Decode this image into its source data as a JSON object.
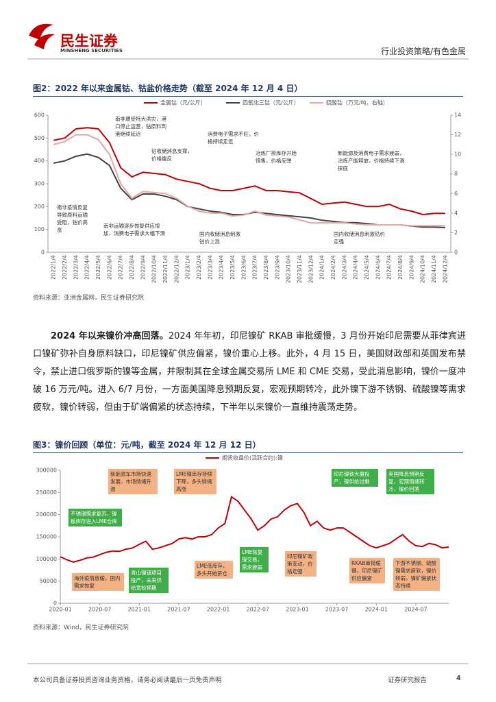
{
  "header": {
    "logo_cn": "民生证券",
    "logo_en": "MINSHENG SECURITIES",
    "section": "行业投资策略/有色金属"
  },
  "figure2": {
    "title": "图2：2022 年以来金属钴、钴盐价格走势（截至 2024 年 12 月 4 日）",
    "source": "资料来源：亚洲金属网，民生证券研究院"
  },
  "paragraph": {
    "lead": "2024 年以来镍价冲高回落。",
    "body": "2024 年年初，印尼镍矿 RKAB 审批缓慢，3 月份开始印尼需要从菲律宾进口镍矿弥补自身原料缺口，印尼镍矿供应偏紧，镍价重心上移。此外，4 月 15 日，美国财政部和英国发布禁令，禁止进口俄罗斯的镍等金属，并限制其在全球金属交易所 LME 和 CME 交易，受此消息影响，镍价一度冲破 16 万元/吨。进入 6/7 月份，一方面美国降息预期反复，宏观预期转冷，此外镍下游不锈钢、硫酸镍等需求疲软，镍价转弱，但由于矿端偏紧的状态持续，下半年以来镍价一直维持震荡走势。"
  },
  "figure3": {
    "title": "图3：镍价回顾（单位：元/吨，截至 2024 年 12 月 12 日）",
    "source": "资料来源：Wind，民生证券研究院"
  },
  "footer": {
    "disclaimer": "本公司具备证券投资咨询业务资格，请务必阅读最后一页免责声明",
    "report_type": "证券研究报告",
    "page": "4"
  },
  "chart_data": [
    {
      "type": "line",
      "categories": [
        "2022/1/4",
        "2022/2/4",
        "2022/3/4",
        "2022/4/4",
        "2022/5/4",
        "2022/6/4",
        "2022/7/4",
        "2022/8/4",
        "2022/9/4",
        "2022/10/4",
        "2022/11/4",
        "2022/12/4",
        "2023/1/4",
        "2023/2/4",
        "2023/3/4",
        "2023/4/4",
        "2023/5/4",
        "2023/6/4",
        "2023/7/4",
        "2023/8/4",
        "2023/9/4",
        "2023/10/4",
        "2023/11/4",
        "2023/12/4",
        "2024/1/4",
        "2024/2/4",
        "2024/3/4",
        "2024/4/4",
        "2024/5/4",
        "2024/6/4",
        "2024/7/4",
        "2024/8/4",
        "2024/9/4",
        "2024/10/4",
        "2024/11/4",
        "2024/12/4"
      ],
      "series": [
        {
          "name": "金属钴（元/公斤）",
          "color": "#c00000",
          "values": [
            490,
            500,
            540,
            545,
            540,
            480,
            370,
            330,
            350,
            345,
            340,
            320,
            310,
            300,
            280,
            270,
            270,
            280,
            290,
            270,
            270,
            265,
            260,
            235,
            210,
            215,
            220,
            210,
            200,
            200,
            210,
            190,
            180,
            165,
            170,
            170
          ]
        },
        {
          "name": "四氧化三钴（元/公斤）",
          "color": "#404040",
          "values": [
            390,
            400,
            420,
            430,
            415,
            380,
            280,
            230,
            255,
            255,
            245,
            230,
            200,
            190,
            180,
            175,
            165,
            165,
            175,
            170,
            165,
            160,
            155,
            150,
            140,
            135,
            130,
            130,
            125,
            120,
            120,
            120,
            115,
            110,
            110,
            108
          ]
        },
        {
          "name": "硫酸钴（万元/吨，右轴）",
          "color": "#e6a5a5",
          "axis": "y2",
          "values": [
            11,
            11.3,
            12,
            12,
            11.5,
            10,
            7,
            5.5,
            6.2,
            6.1,
            6,
            5.5,
            4.7,
            4.2,
            4,
            4,
            3.7,
            3.8,
            4.2,
            3.8,
            3.7,
            3.6,
            3.3,
            3,
            3,
            3,
            3,
            2.9,
            2.8,
            2.8,
            2.8,
            2.8,
            2.7,
            2.7,
            2.7,
            2.7
          ]
        }
      ],
      "ylim": [
        0,
        600
      ],
      "yticks": [
        0,
        100,
        200,
        300,
        400,
        500,
        600
      ],
      "y2lim": [
        0,
        14
      ],
      "y2ticks": [
        0,
        2,
        4,
        6,
        8,
        10,
        12,
        14
      ],
      "annotations": [
        "南非疫情反复导致原料运输受阻，钴价高涨",
        "南非运输逐步恢复供应增加，消费电子需求大幅下滑",
        "南非遭受特大洪灾，港口停止运营，钴原料到港继续延迟",
        "钴收储消息支撑，价格缓反",
        "消费电子需求不旺，价格持续走低",
        "冶炼厂排库存开始惜售，价格反弹",
        "国内收储消息刺激钴价上涨",
        "新能源及消费电子需求疲弱，冶炼产能释放，价格持续下滑探底",
        "国内收储消息刺激钴价走强"
      ]
    },
    {
      "type": "line",
      "x": [
        "2020-01",
        "2020-02",
        "2020-03",
        "2020-04",
        "2020-05",
        "2020-06",
        "2020-07",
        "2020-08",
        "2020-09",
        "2020-10",
        "2020-11",
        "2020-12",
        "2021-01",
        "2021-02",
        "2021-03",
        "2021-04",
        "2021-05",
        "2021-06",
        "2021-07",
        "2021-08",
        "2021-09",
        "2021-10",
        "2021-11",
        "2021-12",
        "2022-01",
        "2022-02",
        "2022-03",
        "2022-04",
        "2022-05",
        "2022-06",
        "2022-07",
        "2022-08",
        "2022-09",
        "2022-10",
        "2022-11",
        "2022-12",
        "2023-01",
        "2023-02",
        "2023-03",
        "2023-04",
        "2023-05",
        "2023-06",
        "2023-07",
        "2023-08",
        "2023-09",
        "2023-10",
        "2023-11",
        "2023-12",
        "2024-01",
        "2024-02",
        "2024-03",
        "2024-04",
        "2024-05",
        "2024-06",
        "2024-07",
        "2024-08",
        "2024-09",
        "2024-10",
        "2024-11",
        "2024-12"
      ],
      "xticks": [
        "2020-01",
        "2020-07",
        "2021-01",
        "2021-07",
        "2022-01",
        "2022-07",
        "2023-01",
        "2023-07",
        "2024-01",
        "2024-07"
      ],
      "series": [
        {
          "name": "期货收盘价(活跃合约):镍",
          "color": "#c00000",
          "values": [
            105000,
            98000,
            93000,
            97000,
            102000,
            104000,
            110000,
            115000,
            118000,
            117000,
            122000,
            125000,
            133000,
            140000,
            122000,
            125000,
            130000,
            135000,
            145000,
            148000,
            145000,
            150000,
            150000,
            155000,
            170000,
            180000,
            240000,
            230000,
            210000,
            190000,
            165000,
            175000,
            190000,
            195000,
            210000,
            220000,
            225000,
            205000,
            175000,
            185000,
            170000,
            165000,
            170000,
            170000,
            160000,
            150000,
            140000,
            130000,
            125000,
            130000,
            135000,
            145000,
            155000,
            140000,
            130000,
            128000,
            135000,
            132000,
            125000,
            127000
          ]
        }
      ],
      "ylim": [
        0,
        300000
      ],
      "yticks": [
        0,
        50000,
        100000,
        150000,
        200000,
        250000,
        300000
      ],
      "annotations": [
        "新能源车市场快速发展，市场情绪升温",
        "不锈钢需求复苏，镍板库存进入LME仓库",
        "海外疫情放缓，国内需求恢复",
        "青山镍锍项目投产，未来供给宽松预期",
        "LME镍库存持续下降，多头情绪高涨",
        "LME低库存，多头开始挤仓",
        "LME恢复镍交易，需求疲弱",
        "印尼镍矿政策变动，价格走强",
        "印尼镍铁大量投产，镍供给过剩",
        "RKAB审批缓慢，印尼镍矿供应偏紧",
        "美国降息预期反复，宏观情绪转冷，镍价回落",
        "下游不锈钢、硫酸镍需求疲软，镍价转弱，镍矿偏紧状态持续"
      ]
    }
  ]
}
